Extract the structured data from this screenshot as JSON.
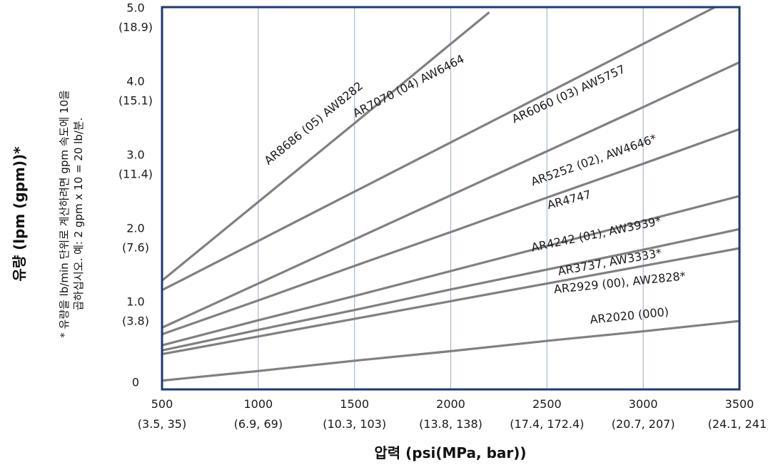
{
  "chart_data": {
    "type": "line",
    "xlabel": "압력 (psi(MPa, bar))",
    "ylabel": "유량 (lpm (gpm))*",
    "footnote": [
      "* 유량을 lb/min 단위로 계산하려면 gpm 속도에 10을",
      "곱하십시오. 예: 2 gpm x 10 = 20 lb/분."
    ],
    "xlim": [
      500,
      3500
    ],
    "ylim": [
      -0.1,
      5.1
    ],
    "grid": true,
    "x_ticks": [
      {
        "value": 500,
        "label": "500",
        "sub": "(3.5, 35)"
      },
      {
        "value": 1000,
        "label": "1000",
        "sub": "(6.9, 69)"
      },
      {
        "value": 1500,
        "label": "1500",
        "sub": "(10.3, 103)"
      },
      {
        "value": 2000,
        "label": "2000",
        "sub": "(13.8, 138)"
      },
      {
        "value": 2500,
        "label": "2500",
        "sub": "(17.4, 172.4)"
      },
      {
        "value": 3000,
        "label": "3000",
        "sub": "(20.7, 207)"
      },
      {
        "value": 3500,
        "label": "3500",
        "sub": "(24.1, 241)"
      }
    ],
    "y_ticks": [
      {
        "value": 5.0,
        "label": "5.0",
        "sub": "(18.9)"
      },
      {
        "value": 4.0,
        "label": "4.0",
        "sub": "(15.1)"
      },
      {
        "value": 3.0,
        "label": "3.0",
        "sub": "(11.4)"
      },
      {
        "value": 2.0,
        "label": "2.0",
        "sub": "(7.6)"
      },
      {
        "value": 1.0,
        "label": "1.0",
        "sub": "(3.8)"
      },
      {
        "value": 0.0,
        "label": "0",
        "sub": ""
      }
    ],
    "series": [
      {
        "name": "AR8686 (05) AW8282",
        "x": [
          500,
          1000,
          1500,
          2000,
          2200
        ],
        "y": [
          1.38,
          2.45,
          3.52,
          4.6,
          5.03
        ],
        "label_x": 1300,
        "label_y": 3.48
      },
      {
        "name": "AR7070 (04) AW6464",
        "x": [
          500,
          1000,
          1500,
          2000,
          2500,
          3000,
          3500
        ],
        "y": [
          1.25,
          1.92,
          2.59,
          3.26,
          3.93,
          4.6,
          5.27
        ],
        "label_x": 1790,
        "label_y": 3.98
      },
      {
        "name": "AR6060 (03) AW5757",
        "x": [
          500,
          1000,
          1500,
          2000,
          2500,
          3000,
          3500
        ],
        "y": [
          0.74,
          1.34,
          1.94,
          2.54,
          3.14,
          3.74,
          4.35
        ],
        "label_x": 2620,
        "label_y": 3.87
      },
      {
        "name": "AR5252 (02), AW4646*",
        "x": [
          500,
          1000,
          1500,
          2000,
          2500,
          3000,
          3500
        ],
        "y": [
          0.65,
          1.11,
          1.58,
          2.04,
          2.51,
          2.97,
          3.44
        ],
        "label_x": 2750,
        "label_y": 2.97
      },
      {
        "name": "AR4747",
        "x": [
          500,
          1000,
          1500,
          2000,
          2500,
          3000,
          3500
        ],
        "y": [
          0.5,
          0.84,
          1.17,
          1.51,
          1.85,
          2.19,
          2.53
        ],
        "label_x": 2620,
        "label_y": 2.43
      },
      {
        "name": "AR4242 (01), AW3939*",
        "x": [
          500,
          1000,
          1500,
          2000,
          2500,
          3000,
          3500
        ],
        "y": [
          0.43,
          0.71,
          0.98,
          1.26,
          1.53,
          1.8,
          2.08
        ],
        "label_x": 2760,
        "label_y": 1.96
      },
      {
        "name": "AR3737, AW3333*",
        "x": [
          500,
          1000,
          1500,
          2000,
          2500,
          3000,
          3500
        ],
        "y": [
          0.38,
          0.62,
          0.86,
          1.1,
          1.34,
          1.58,
          1.82
        ],
        "label_x": 2830,
        "label_y": 1.58
      },
      {
        "name": "AR2929 (00), AW2828*",
        "x": [
          500,
          1000,
          1500,
          2000,
          2500,
          3000,
          3500
        ],
        "y": [
          0.02,
          0.15,
          0.29,
          0.42,
          0.56,
          0.69,
          0.83
        ],
        "label_x": 2880,
        "label_y": 1.3
      },
      {
        "name": "AR2020 (000)",
        "x": [],
        "y": [],
        "label_x": 2930,
        "label_y": 0.85
      }
    ]
  }
}
